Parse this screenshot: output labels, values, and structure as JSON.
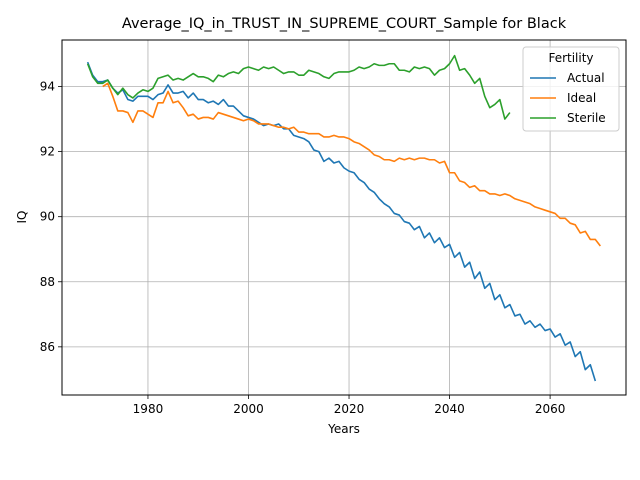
{
  "chart_data": {
    "type": "line",
    "title": "Average_IQ_in_TRUST_IN_SUPREME_COURT_Sample for Black",
    "xlabel": "Years",
    "ylabel": "IQ",
    "xlim": [
      1962.9,
      2075.1
    ],
    "ylim": [
      84.52,
      95.43
    ],
    "x_ticks": [
      1980,
      2000,
      2020,
      2040,
      2060
    ],
    "y_ticks": [
      86,
      88,
      90,
      92,
      94
    ],
    "grid": true,
    "legend": {
      "title": "Fertility",
      "placement": "top-right"
    },
    "series": [
      {
        "name": "Actual",
        "color": "#1f77b4",
        "x": [
          1968,
          1969,
          1970,
          1971,
          1972,
          1973,
          1974,
          1975,
          1976,
          1977,
          1978,
          1979,
          1980,
          1981,
          1982,
          1983,
          1984,
          1985,
          1986,
          1987,
          1988,
          1989,
          1990,
          1991,
          1992,
          1993,
          1994,
          1995,
          1996,
          1997,
          1998,
          1999,
          2000,
          2001,
          2002,
          2003,
          2004,
          2005,
          2006,
          2007,
          2008,
          2009,
          2010,
          2011,
          2012,
          2013,
          2014,
          2015,
          2016,
          2017,
          2018,
          2019,
          2020,
          2021,
          2022,
          2023,
          2024,
          2025,
          2026,
          2027,
          2028,
          2029,
          2030,
          2031,
          2032,
          2033,
          2034,
          2035,
          2036,
          2037,
          2038,
          2039,
          2040,
          2041,
          2042,
          2043,
          2044,
          2045,
          2046,
          2047,
          2048,
          2049,
          2050,
          2051,
          2052,
          2053,
          2054,
          2055,
          2056,
          2057,
          2058,
          2059,
          2060,
          2061,
          2062,
          2063,
          2064,
          2065,
          2066,
          2067,
          2068,
          2069,
          2070
        ],
        "y": [
          94.75,
          94.35,
          94.15,
          94.15,
          94.2,
          93.95,
          93.8,
          93.9,
          93.6,
          93.55,
          93.7,
          93.7,
          93.7,
          93.6,
          93.75,
          93.8,
          94.05,
          93.8,
          93.8,
          93.85,
          93.65,
          93.8,
          93.6,
          93.6,
          93.5,
          93.55,
          93.45,
          93.6,
          93.4,
          93.4,
          93.25,
          93.1,
          93.05,
          93.0,
          92.9,
          92.8,
          92.85,
          92.8,
          92.85,
          92.7,
          92.7,
          92.5,
          92.45,
          92.4,
          92.3,
          92.05,
          92.0,
          91.7,
          91.8,
          91.65,
          91.7,
          91.5,
          91.4,
          91.35,
          91.15,
          91.05,
          90.85,
          90.75,
          90.55,
          90.4,
          90.3,
          90.1,
          90.05,
          89.85,
          89.8,
          89.6,
          89.7,
          89.35,
          89.5,
          89.2,
          89.35,
          89.05,
          89.15,
          88.75,
          88.9,
          88.45,
          88.6,
          88.1,
          88.3,
          87.8,
          87.95,
          87.45,
          87.6,
          87.2,
          87.3,
          86.95,
          87.0,
          86.7,
          86.8,
          86.6,
          86.7,
          86.5,
          86.55,
          86.3,
          86.4,
          86.05,
          86.15,
          85.7,
          85.85,
          85.3,
          85.45,
          84.95,
          null
        ]
      },
      {
        "name": "Ideal",
        "color": "#ff7f0e",
        "x": [
          1971,
          1972,
          1973,
          1974,
          1975,
          1976,
          1977,
          1978,
          1979,
          1980,
          1981,
          1982,
          1983,
          1984,
          1985,
          1986,
          1987,
          1988,
          1989,
          1990,
          1991,
          1992,
          1993,
          1994,
          1995,
          1996,
          1997,
          1998,
          1999,
          2000,
          2001,
          2002,
          2003,
          2004,
          2005,
          2006,
          2007,
          2008,
          2009,
          2010,
          2011,
          2012,
          2013,
          2014,
          2015,
          2016,
          2017,
          2018,
          2019,
          2020,
          2021,
          2022,
          2023,
          2024,
          2025,
          2026,
          2027,
          2028,
          2029,
          2030,
          2031,
          2032,
          2033,
          2034,
          2035,
          2036,
          2037,
          2038,
          2039,
          2040,
          2041,
          2042,
          2043,
          2044,
          2045,
          2046,
          2047,
          2048,
          2049,
          2050,
          2051,
          2052,
          2053,
          2054,
          2055,
          2056,
          2057,
          2058,
          2059,
          2060,
          2061,
          2062,
          2063,
          2064,
          2065,
          2066,
          2067,
          2068,
          2069,
          2070
        ],
        "y": [
          94.0,
          94.1,
          93.7,
          93.25,
          93.25,
          93.2,
          92.9,
          93.25,
          93.25,
          93.15,
          93.05,
          93.5,
          93.5,
          93.85,
          93.5,
          93.55,
          93.35,
          93.1,
          93.15,
          93.0,
          93.05,
          93.05,
          93.0,
          93.2,
          93.15,
          93.1,
          93.05,
          93.0,
          92.95,
          93.0,
          92.95,
          92.85,
          92.85,
          92.85,
          92.8,
          92.75,
          92.75,
          92.7,
          92.75,
          92.6,
          92.6,
          92.55,
          92.55,
          92.55,
          92.45,
          92.45,
          92.5,
          92.45,
          92.45,
          92.4,
          92.3,
          92.25,
          92.15,
          92.05,
          91.9,
          91.85,
          91.75,
          91.75,
          91.7,
          91.8,
          91.75,
          91.8,
          91.75,
          91.8,
          91.8,
          91.75,
          91.75,
          91.65,
          91.7,
          91.35,
          91.35,
          91.1,
          91.05,
          90.9,
          90.95,
          90.8,
          90.8,
          90.7,
          90.7,
          90.65,
          90.7,
          90.65,
          90.55,
          90.5,
          90.45,
          90.4,
          90.3,
          90.25,
          90.2,
          90.15,
          90.1,
          89.95,
          89.95,
          89.8,
          89.75,
          89.5,
          89.55,
          89.3,
          89.3,
          89.1
        ]
      },
      {
        "name": "Sterile",
        "color": "#2ca02c",
        "x": [
          1968,
          1969,
          1970,
          1971,
          1972,
          1973,
          1974,
          1975,
          1976,
          1977,
          1978,
          1979,
          1980,
          1981,
          1982,
          1983,
          1984,
          1985,
          1986,
          1987,
          1988,
          1989,
          1990,
          1991,
          1992,
          1993,
          1994,
          1995,
          1996,
          1997,
          1998,
          1999,
          2000,
          2001,
          2002,
          2003,
          2004,
          2005,
          2006,
          2007,
          2008,
          2009,
          2010,
          2011,
          2012,
          2013,
          2014,
          2015,
          2016,
          2017,
          2018,
          2019,
          2020,
          2021,
          2022,
          2023,
          2024,
          2025,
          2026,
          2027,
          2028,
          2029,
          2030,
          2031,
          2032,
          2033,
          2034,
          2035,
          2036,
          2037,
          2038,
          2039,
          2040,
          2041,
          2042,
          2043,
          2044,
          2045,
          2046,
          2047,
          2048,
          2049,
          2050,
          2051,
          2052,
          2053
        ],
        "y": [
          94.7,
          94.3,
          94.1,
          94.1,
          94.2,
          93.95,
          93.75,
          93.95,
          93.75,
          93.65,
          93.8,
          93.9,
          93.85,
          93.95,
          94.25,
          94.3,
          94.35,
          94.2,
          94.25,
          94.2,
          94.3,
          94.4,
          94.3,
          94.3,
          94.25,
          94.15,
          94.35,
          94.3,
          94.4,
          94.45,
          94.4,
          94.55,
          94.6,
          94.55,
          94.5,
          94.6,
          94.55,
          94.6,
          94.5,
          94.4,
          94.45,
          94.45,
          94.35,
          94.35,
          94.5,
          94.45,
          94.4,
          94.3,
          94.25,
          94.4,
          94.45,
          94.45,
          94.45,
          94.5,
          94.6,
          94.55,
          94.6,
          94.7,
          94.65,
          94.65,
          94.7,
          94.7,
          94.5,
          94.5,
          94.45,
          94.6,
          94.55,
          94.6,
          94.55,
          94.35,
          94.5,
          94.55,
          94.7,
          94.95,
          94.5,
          94.55,
          94.35,
          94.1,
          94.25,
          93.7,
          93.35,
          93.45,
          93.6,
          93.0,
          93.2,
          null
        ]
      }
    ]
  }
}
